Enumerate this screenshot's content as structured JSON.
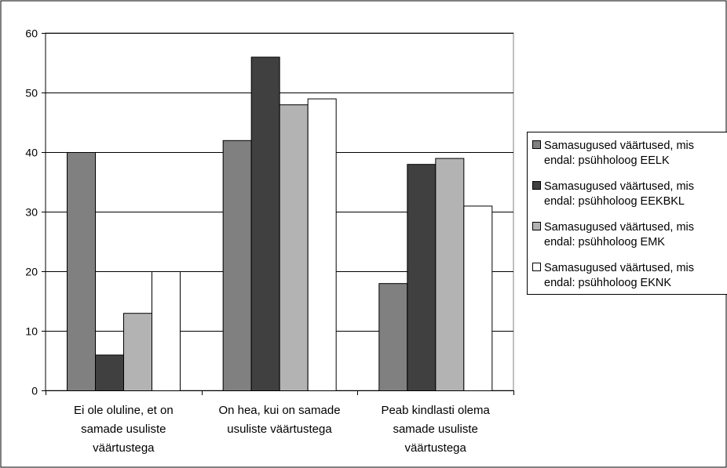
{
  "chart_data": {
    "type": "bar",
    "categories": [
      [
        "Ei ole oluline, et on",
        "samade usuliste",
        "väärtustega"
      ],
      [
        "On hea, kui on samade",
        "usuliste väärtustega"
      ],
      [
        "Peab kindlasti olema",
        "samade usuliste",
        "väärtustega"
      ]
    ],
    "series": [
      {
        "name": [
          "Samasugused väärtused, mis",
          "endal: psühholoog EELK"
        ],
        "color": "#808080",
        "values": [
          40,
          42,
          18
        ]
      },
      {
        "name": [
          "Samasugused väärtused, mis",
          "endal: psühholoog EEKBKL"
        ],
        "color": "#404040",
        "values": [
          6,
          56,
          38
        ]
      },
      {
        "name": [
          "Samasugused väärtused, mis",
          "endal: psühholoog EMK"
        ],
        "color": "#b3b3b3",
        "values": [
          13,
          48,
          39
        ]
      },
      {
        "name": [
          "Samasugused väärtused, mis",
          "endal: psühholoog EKNK"
        ],
        "color": "#ffffff",
        "values": [
          20,
          49,
          31
        ]
      }
    ],
    "yticks": [
      "0",
      "10",
      "20",
      "30",
      "40",
      "50",
      "60"
    ],
    "ylim": [
      0,
      60
    ],
    "grid": true,
    "legend_position": "right"
  }
}
